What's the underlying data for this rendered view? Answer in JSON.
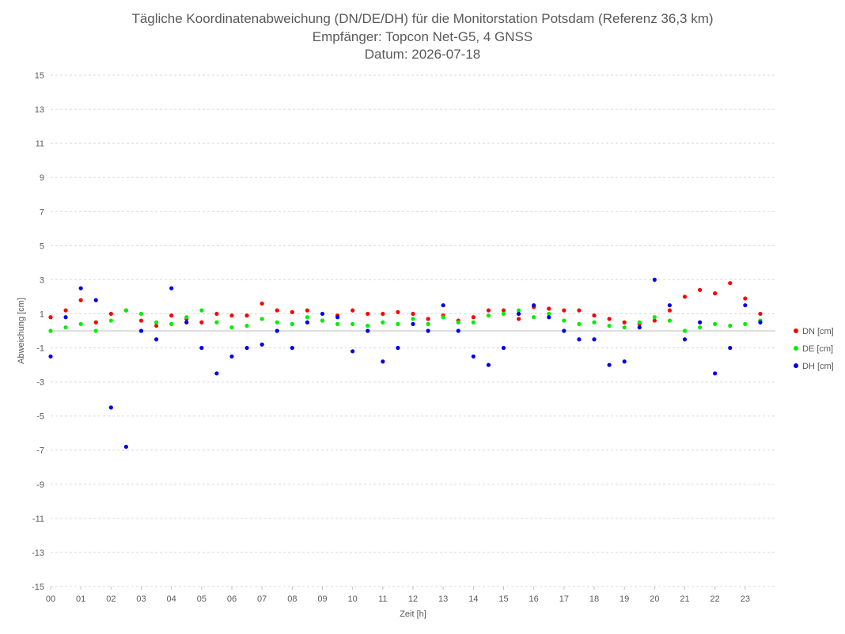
{
  "chart_data": {
    "type": "scatter",
    "title": [
      "Tägliche Koordinatenabweichung (DN/DE/DH) für die Monitorstation Potsdam (Referenz 36,3 km)",
      "Empfänger: Topcon Net-G5, 4 GNSS",
      "Datum: 2026-07-18"
    ],
    "xlabel": "Zeit [h]",
    "ylabel": "Abweichung [cm]",
    "xlim": [
      0,
      24
    ],
    "ylim": [
      -15,
      15
    ],
    "x_ticks": [
      0,
      1,
      2,
      3,
      4,
      5,
      6,
      7,
      8,
      9,
      10,
      11,
      12,
      13,
      14,
      15,
      16,
      17,
      18,
      19,
      20,
      21,
      22,
      23
    ],
    "x_tick_labels": [
      "00",
      "01",
      "02",
      "03",
      "04",
      "05",
      "06",
      "07",
      "08",
      "09",
      "10",
      "11",
      "12",
      "13",
      "14",
      "15",
      "16",
      "17",
      "18",
      "19",
      "20",
      "21",
      "22",
      "23"
    ],
    "y_ticks": [
      -15,
      -13,
      -11,
      -9,
      -7,
      -5,
      -3,
      -1,
      1,
      3,
      5,
      7,
      9,
      11,
      13,
      15
    ],
    "y_tick_labels": [
      "-15",
      "-13",
      "-11",
      "-9",
      "-7",
      "-5",
      "-3",
      "-1",
      "1",
      "3",
      "5",
      "7",
      "9",
      "11",
      "13",
      "15"
    ],
    "grid": true,
    "legend_position": "right",
    "series": [
      {
        "name": "DN [cm]",
        "color": "#ff0000",
        "x": [
          0.0,
          0.5,
          1.0,
          1.5,
          2.0,
          2.5,
          3.0,
          3.5,
          4.0,
          4.5,
          5.0,
          5.5,
          6.0,
          6.5,
          7.0,
          7.5,
          8.0,
          8.5,
          9.0,
          9.5,
          10.0,
          10.5,
          11.0,
          11.5,
          12.0,
          12.5,
          13.0,
          13.5,
          14.0,
          14.5,
          15.0,
          15.5,
          16.0,
          16.5,
          17.0,
          17.5,
          18.0,
          18.5,
          19.0,
          19.5,
          20.0,
          20.5,
          21.0,
          21.5,
          22.0,
          22.5,
          23.0,
          23.5
        ],
        "y": [
          0.8,
          1.2,
          1.8,
          0.5,
          1.0,
          1.2,
          0.6,
          0.3,
          0.9,
          0.7,
          0.5,
          1.0,
          0.9,
          0.9,
          1.6,
          1.2,
          1.1,
          1.2,
          0.6,
          0.9,
          1.2,
          1.0,
          1.0,
          1.1,
          1.0,
          0.7,
          0.9,
          0.6,
          0.8,
          1.2,
          1.2,
          0.7,
          1.4,
          1.3,
          1.2,
          1.2,
          0.9,
          0.7,
          0.5,
          0.4,
          0.6,
          1.2,
          2.0,
          2.4,
          2.2,
          2.8,
          1.9,
          1.0
        ]
      },
      {
        "name": "DE [cm]",
        "color": "#00ee00",
        "x": [
          0.0,
          0.5,
          1.0,
          1.5,
          2.0,
          2.5,
          3.0,
          3.5,
          4.0,
          4.5,
          5.0,
          5.5,
          6.0,
          6.5,
          7.0,
          7.5,
          8.0,
          8.5,
          9.0,
          9.5,
          10.0,
          10.5,
          11.0,
          11.5,
          12.0,
          12.5,
          13.0,
          13.5,
          14.0,
          14.5,
          15.0,
          15.5,
          16.0,
          16.5,
          17.0,
          17.5,
          18.0,
          18.5,
          19.0,
          19.5,
          20.0,
          20.5,
          21.0,
          21.5,
          22.0,
          22.5,
          23.0,
          23.5
        ],
        "y": [
          0.0,
          0.2,
          0.4,
          0.0,
          0.6,
          1.2,
          1.0,
          0.5,
          0.4,
          0.8,
          1.2,
          0.5,
          0.2,
          0.3,
          0.7,
          0.5,
          0.4,
          0.8,
          0.6,
          0.4,
          0.4,
          0.3,
          0.5,
          0.4,
          0.7,
          0.4,
          0.8,
          0.5,
          0.5,
          0.9,
          1.0,
          1.2,
          0.8,
          1.0,
          0.6,
          0.4,
          0.5,
          0.3,
          0.2,
          0.5,
          0.8,
          0.6,
          0.0,
          0.2,
          0.4,
          0.3,
          0.4,
          0.6
        ]
      },
      {
        "name": "DH [cm]",
        "color": "#0000ee",
        "x": [
          0.0,
          0.5,
          1.0,
          1.5,
          2.0,
          2.5,
          3.0,
          3.5,
          4.0,
          4.5,
          5.0,
          5.5,
          6.0,
          6.5,
          7.0,
          7.5,
          8.0,
          8.5,
          9.0,
          9.5,
          10.0,
          10.5,
          11.0,
          11.5,
          12.0,
          12.5,
          13.0,
          13.5,
          14.0,
          14.5,
          15.0,
          15.5,
          16.0,
          16.5,
          17.0,
          17.5,
          18.0,
          18.5,
          19.0,
          19.5,
          20.0,
          20.5,
          21.0,
          21.5,
          22.0,
          22.5,
          23.0,
          23.5
        ],
        "y": [
          -1.5,
          0.8,
          2.5,
          1.8,
          -4.5,
          -6.8,
          0.0,
          -0.5,
          2.5,
          0.5,
          -1.0,
          -2.5,
          -1.5,
          -1.0,
          -0.8,
          0.0,
          -1.0,
          0.5,
          1.0,
          0.8,
          -1.2,
          0.0,
          -1.8,
          -1.0,
          0.4,
          0.0,
          1.5,
          0.0,
          -1.5,
          -2.0,
          -1.0,
          1.0,
          1.5,
          0.8,
          0.0,
          -0.5,
          -0.5,
          -2.0,
          -1.8,
          0.2,
          3.0,
          1.5,
          -0.5,
          0.5,
          -2.5,
          -1.0,
          1.5,
          0.5
        ]
      }
    ]
  }
}
